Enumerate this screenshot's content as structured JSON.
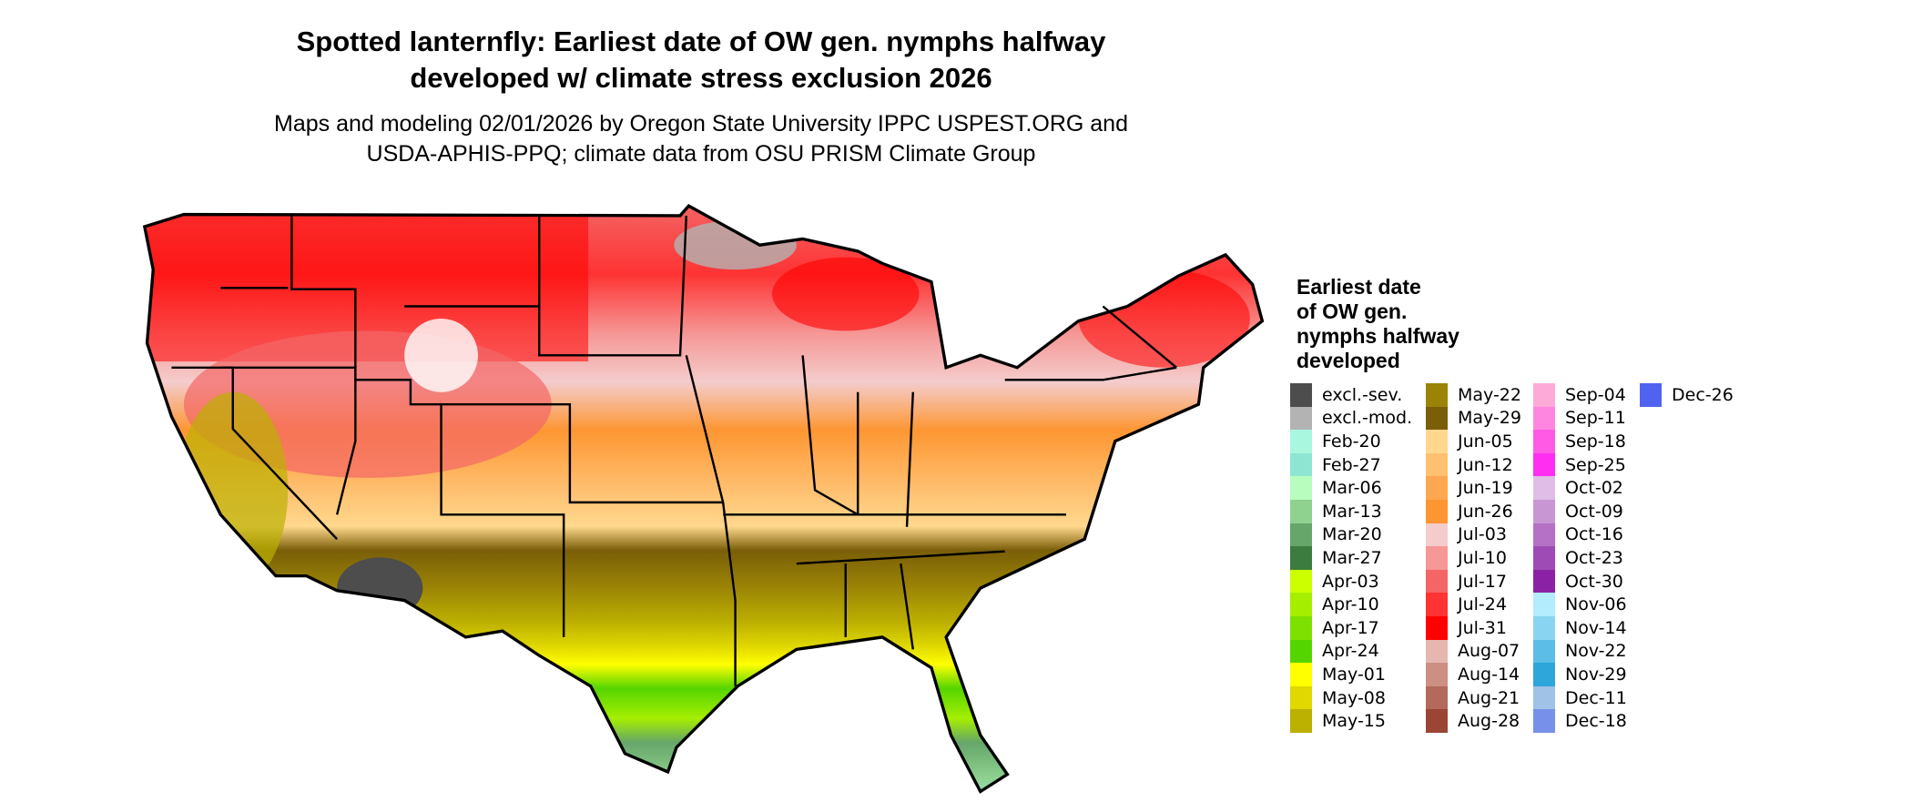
{
  "title_line1": "Spotted lanternfly: Earliest date of OW gen. nymphs halfway",
  "title_line2": "developed w/ climate stress exclusion 2026",
  "subtitle_line1": "Maps and modeling 02/01/2026 by Oregon State University IPPC USPEST.ORG and",
  "subtitle_line2": "USDA-APHIS-PPQ; climate data from OSU PRISM Climate Group",
  "legend": {
    "title_lines": [
      "Earliest date",
      "of OW gen.",
      "nymphs halfway",
      "developed"
    ],
    "items": [
      {
        "label": "excl.-sev.",
        "color": "#4d4d4d"
      },
      {
        "label": "excl.-mod.",
        "color": "#b3b3b3"
      },
      {
        "label": "Feb-20",
        "color": "#aaf7e0"
      },
      {
        "label": "Feb-27",
        "color": "#8ee6d2"
      },
      {
        "label": "Mar-06",
        "color": "#b8fdbe"
      },
      {
        "label": "Mar-13",
        "color": "#8fd18f"
      },
      {
        "label": "Mar-20",
        "color": "#66a66a"
      },
      {
        "label": "Mar-27",
        "color": "#3c7c3e"
      },
      {
        "label": "Apr-03",
        "color": "#ccff00"
      },
      {
        "label": "Apr-10",
        "color": "#a6ee00"
      },
      {
        "label": "Apr-17",
        "color": "#7ee000"
      },
      {
        "label": "Apr-24",
        "color": "#55d500"
      },
      {
        "label": "May-01",
        "color": "#ffff00"
      },
      {
        "label": "May-08",
        "color": "#e0d800"
      },
      {
        "label": "May-15",
        "color": "#bcb000"
      },
      {
        "label": "May-22",
        "color": "#9a8306"
      },
      {
        "label": "May-29",
        "color": "#7a5e08"
      },
      {
        "label": "Jun-05",
        "color": "#ffd88e"
      },
      {
        "label": "Jun-12",
        "color": "#ffc070"
      },
      {
        "label": "Jun-19",
        "color": "#fda752"
      },
      {
        "label": "Jun-26",
        "color": "#fd9632"
      },
      {
        "label": "Jul-03",
        "color": "#f4cccc"
      },
      {
        "label": "Jul-10",
        "color": "#f59896"
      },
      {
        "label": "Jul-17",
        "color": "#f46666"
      },
      {
        "label": "Jul-24",
        "color": "#fe3333"
      },
      {
        "label": "Jul-31",
        "color": "#ff0000"
      },
      {
        "label": "Aug-07",
        "color": "#e6b7ae"
      },
      {
        "label": "Aug-14",
        "color": "#cc8f82"
      },
      {
        "label": "Aug-21",
        "color": "#b36a5a"
      },
      {
        "label": "Aug-28",
        "color": "#9b4534"
      },
      {
        "label": "Sep-04",
        "color": "#fdaad8"
      },
      {
        "label": "Sep-11",
        "color": "#ff86e0"
      },
      {
        "label": "Sep-18",
        "color": "#ff5ae6"
      },
      {
        "label": "Sep-25",
        "color": "#ff2ef0"
      },
      {
        "label": "Oct-02",
        "color": "#dfbde6"
      },
      {
        "label": "Oct-09",
        "color": "#c996d4"
      },
      {
        "label": "Oct-16",
        "color": "#b471c5"
      },
      {
        "label": "Oct-23",
        "color": "#9f4bb6"
      },
      {
        "label": "Oct-30",
        "color": "#8b22a6"
      },
      {
        "label": "Nov-06",
        "color": "#b3ecfd"
      },
      {
        "label": "Nov-14",
        "color": "#89d4f0"
      },
      {
        "label": "Nov-22",
        "color": "#5cbde6"
      },
      {
        "label": "Nov-29",
        "color": "#2ea6da"
      },
      {
        "label": "Dec-11",
        "color": "#9fc2e6"
      },
      {
        "label": "Dec-18",
        "color": "#7790ea"
      },
      {
        "label": "Dec-26",
        "color": "#5063f0"
      }
    ]
  }
}
